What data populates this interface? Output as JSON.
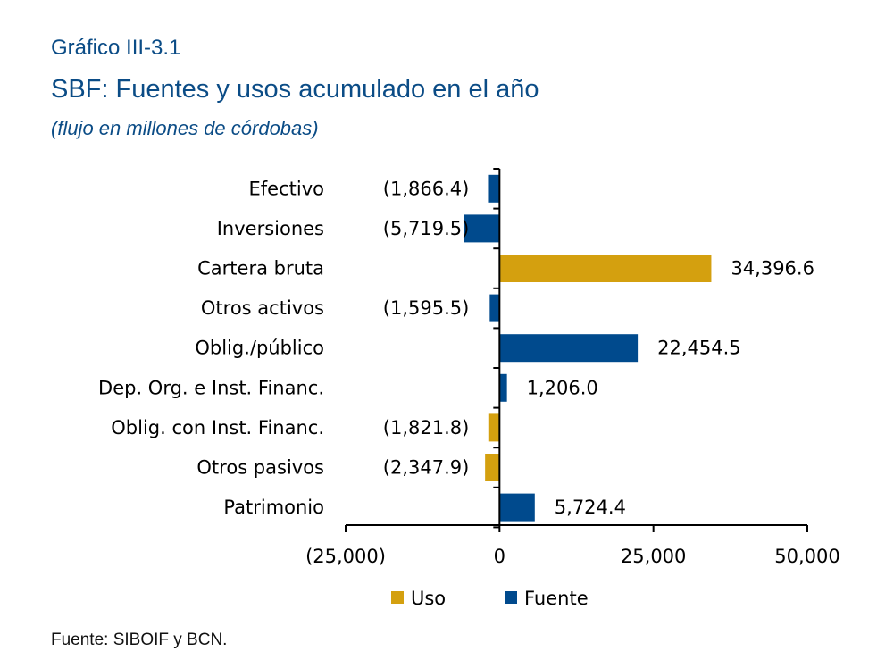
{
  "header": {
    "label": "Gráfico III-3.1",
    "title": "SBF: Fuentes y usos acumulado en el año",
    "subtitle": "(flujo en millones de córdobas)"
  },
  "source": "Fuente: SIBOIF y BCN.",
  "colors": {
    "uso": "#d4a00f",
    "fuente": "#004a8d"
  },
  "chart_data": {
    "type": "bar",
    "orientation": "horizontal",
    "xlim": [
      -25000,
      50000
    ],
    "xticks": [
      -25000,
      0,
      25000,
      50000
    ],
    "xtick_labels": [
      "(25,000)",
      "0",
      "25,000",
      "50,000"
    ],
    "grid": false,
    "legend_position": "bottom",
    "legend": [
      {
        "key": "uso",
        "label": "Uso"
      },
      {
        "key": "fuente",
        "label": "Fuente"
      }
    ],
    "bars": [
      {
        "category": "Efectivo",
        "value": -1866.4,
        "label": "(1,866.4)",
        "series": "fuente"
      },
      {
        "category": "Inversiones",
        "value": -5719.5,
        "label": "(5,719.5)",
        "series": "fuente"
      },
      {
        "category": "Cartera bruta",
        "value": 34396.6,
        "label": "34,396.6",
        "series": "uso"
      },
      {
        "category": "Otros activos",
        "value": -1595.5,
        "label": "(1,595.5)",
        "series": "fuente"
      },
      {
        "category": "Oblig./público",
        "value": 22454.5,
        "label": "22,454.5",
        "series": "fuente"
      },
      {
        "category": "Dep. Org. e Inst. Financ.",
        "value": 1206.0,
        "label": "1,206.0",
        "series": "fuente"
      },
      {
        "category": "Oblig. con Inst. Financ.",
        "value": -1821.8,
        "label": "(1,821.8)",
        "series": "uso"
      },
      {
        "category": "Otros pasivos",
        "value": -2347.9,
        "label": "(2,347.9)",
        "series": "uso"
      },
      {
        "category": "Patrimonio",
        "value": 5724.4,
        "label": "5,724.4",
        "series": "fuente"
      }
    ]
  }
}
